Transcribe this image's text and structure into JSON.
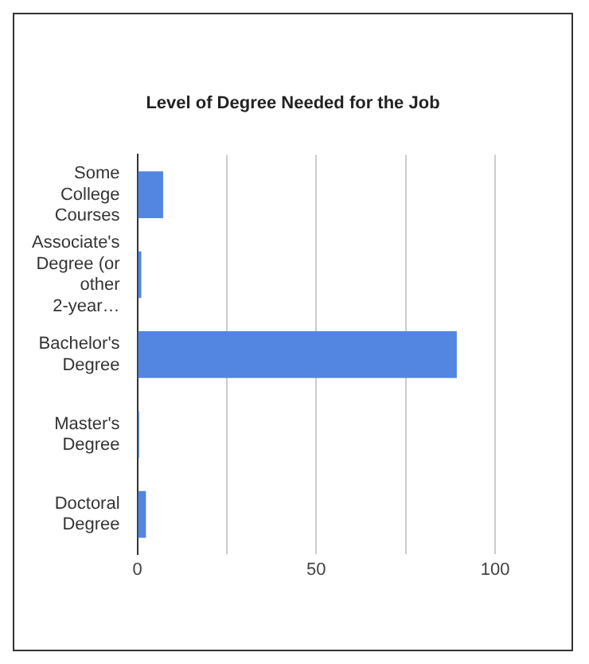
{
  "chart_data": {
    "type": "bar",
    "orientation": "horizontal",
    "title": "Level of Degree Needed for the Job",
    "categories": [
      "Some College Courses",
      "Associate's Degree (or other 2-year…",
      "Bachelor's Degree",
      "Master's Degree",
      "Doctoral Degree"
    ],
    "values": [
      7.2,
      1.1,
      89.3,
      0.5,
      2.4
    ],
    "color": "#5286e0",
    "xlim": [
      0,
      100
    ],
    "xticks": [
      0,
      {
        "value": 25,
        "label": null
      },
      50,
      {
        "value": 75,
        "label": null
      },
      100
    ],
    "grid": "x",
    "legend": false
  }
}
